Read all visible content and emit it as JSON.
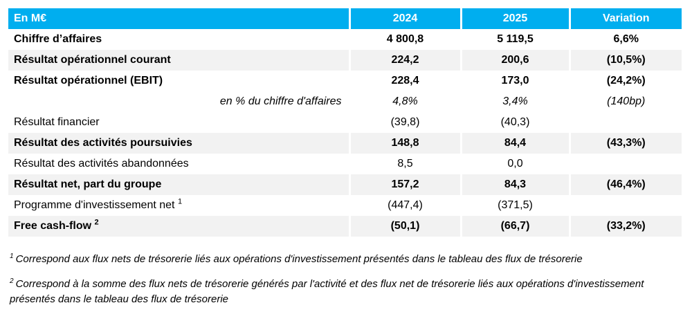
{
  "colors": {
    "header_bg": "#00AEEF",
    "header_text": "#FFFFFF",
    "row_shaded_bg": "#F2F2F2",
    "body_text": "#000000"
  },
  "table": {
    "columns": [
      "En M€",
      "2024",
      "2025",
      "Variation"
    ],
    "rows": [
      {
        "label": "Chiffre d’affaires",
        "v2024": "4 800,8",
        "v2025": "5 119,5",
        "variation": "6,6%"
      },
      {
        "label": "Résultat opérationnel courant",
        "v2024": "224,2",
        "v2025": "200,6",
        "variation": "(10,5%)"
      },
      {
        "label": "Résultat opérationnel (EBIT)",
        "v2024": "228,4",
        "v2025": "173,0",
        "variation": "(24,2%)"
      },
      {
        "label": "en % du chiffre d'affaires",
        "v2024": "4,8%",
        "v2025": "3,4%",
        "variation": "(140bp)"
      },
      {
        "label": "Résultat financier",
        "v2024": "(39,8)",
        "v2025": "(40,3)",
        "variation": ""
      },
      {
        "label": "Résultat des activités poursuivies",
        "v2024": "148,8",
        "v2025": "84,4",
        "variation": "(43,3%)"
      },
      {
        "label": "Résultat des activités abandonnées",
        "v2024": "8,5",
        "v2025": "0,0",
        "variation": ""
      },
      {
        "label": "Résultat net, part du groupe",
        "v2024": "157,2",
        "v2025": "84,3",
        "variation": "(46,4%)"
      },
      {
        "label": "Programme d'investissement net",
        "sup": "1",
        "v2024": "(447,4)",
        "v2025": "(371,5)",
        "variation": ""
      },
      {
        "label": "Free cash-flow",
        "sup": "2",
        "v2024": "(50,1)",
        "v2025": "(66,7)",
        "variation": "(33,2%)"
      }
    ]
  },
  "footnotes": [
    {
      "sup": "1",
      "text": "Correspond aux flux nets de trésorerie liés aux opérations d'investissement présentés dans le tableau des flux de trésorerie"
    },
    {
      "sup": "2",
      "text": "Correspond à la somme des flux nets de trésorerie générés par l'activité et des flux net de trésorerie liés aux opérations d'investissement présentés dans le tableau des flux de trésorerie"
    }
  ]
}
